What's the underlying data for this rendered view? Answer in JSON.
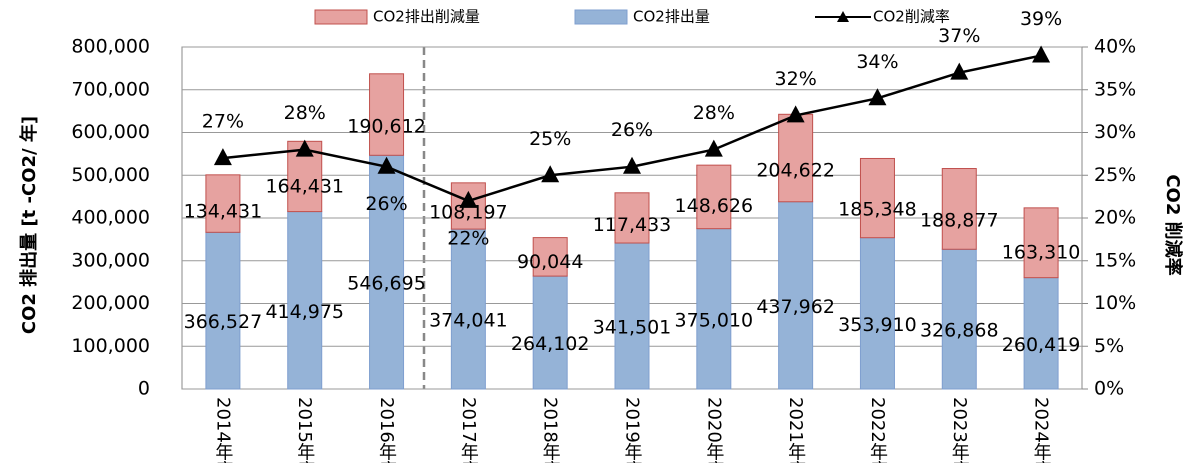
{
  "chart_data": {
    "type": "bar",
    "categories": [
      "2014年度",
      "2015年度",
      "2016年度",
      "2017年度",
      "2018年度",
      "2019年度",
      "2020年度",
      "2021年度",
      "2022年度",
      "2023年度",
      "2024年度"
    ],
    "series": [
      {
        "name": "CO2排出量",
        "type": "bar",
        "color": "#95b3d7",
        "values": [
          366527,
          414975,
          546695,
          374041,
          264102,
          341501,
          375010,
          437962,
          353910,
          326868,
          260419
        ],
        "value_labels": [
          "366,527",
          "414,975",
          "546,695",
          "374,041",
          "264,102",
          "341,501",
          "375,010",
          "437,962",
          "353,910",
          "326,868",
          "260,419"
        ]
      },
      {
        "name": "CO2排出削減量",
        "type": "bar",
        "color": "#e6a2a0",
        "values": [
          134431,
          164431,
          190612,
          108197,
          90044,
          117433,
          148626,
          204622,
          185348,
          188877,
          163310
        ],
        "value_labels": [
          "134,431",
          "164,431",
          "190,612",
          "108,197",
          "90,044",
          "117,433",
          "148,626",
          "204,622",
          "185,348",
          "188,877",
          "163,310"
        ]
      },
      {
        "name": "CO2削減率",
        "type": "line",
        "axis": "y2",
        "color": "#000000",
        "values": [
          27,
          28,
          26,
          22,
          25,
          26,
          28,
          32,
          34,
          37,
          39
        ],
        "value_labels": [
          "27%",
          "28%",
          "26%",
          "22%",
          "25%",
          "26%",
          "28%",
          "32%",
          "34%",
          "37%",
          "39%"
        ]
      }
    ],
    "ylabel": "CO2 排出量 [t -CO2/ 年]",
    "y2label": "CO2 削減率",
    "ylim": [
      0,
      800000
    ],
    "yticks": [
      0,
      {
        "value": 100000,
        "label": "100,000"
      },
      {
        "value": 200000,
        "label": "200,000"
      },
      {
        "value": 300000,
        "label": "300,000"
      },
      {
        "value": 400000,
        "label": "400,000"
      },
      {
        "value": 500000,
        "label": "500,000"
      },
      {
        "value": 600000,
        "label": "600,000"
      },
      {
        "value": 700000,
        "label": "700,000"
      },
      {
        "value": 800000,
        "label": "800,000"
      }
    ],
    "y2lim": [
      0,
      40
    ],
    "y2ticks": [
      {
        "value": 0,
        "label": "0%"
      },
      {
        "value": 5,
        "label": "5%"
      },
      {
        "value": 10,
        "label": "10%"
      },
      {
        "value": 15,
        "label": "15%"
      },
      {
        "value": 20,
        "label": "20%"
      },
      {
        "value": 25,
        "label": "25%"
      },
      {
        "value": 30,
        "label": "30%"
      },
      {
        "value": 35,
        "label": "35%"
      },
      {
        "value": 40,
        "label": "40%"
      }
    ],
    "grid": true,
    "legend": "top"
  }
}
